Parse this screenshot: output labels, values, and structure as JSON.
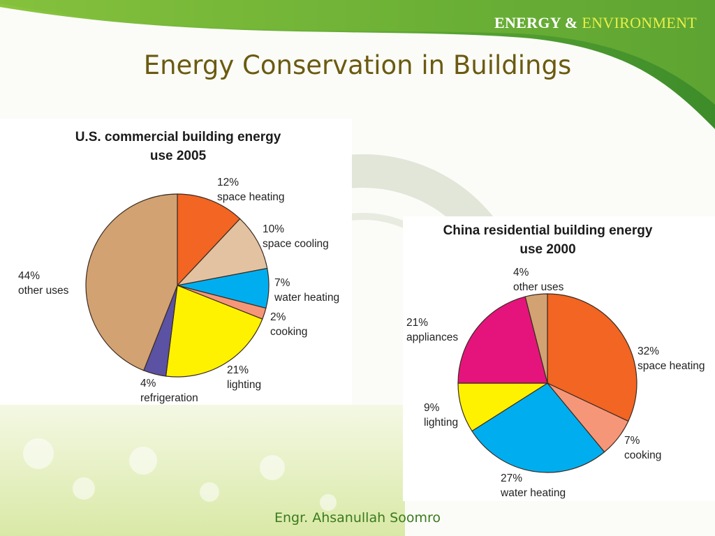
{
  "slide": {
    "brand_part1": "ENERGY &",
    "brand_part2": "ENVIRONMENT",
    "title": "Energy Conservation in Buildings",
    "footer": "Engr. Ahsanullah Soomro"
  },
  "colors": {
    "title": "#6b5a10",
    "brand_accent": "#e6f04a",
    "footer": "#3a7a1c"
  },
  "chart_data": [
    {
      "type": "pie",
      "title_line1": "U.S. commercial building energy",
      "title_line2": "use 2005",
      "slices": [
        {
          "pct": "12%",
          "name": "space heating",
          "value": 12,
          "color": "#f26522"
        },
        {
          "pct": "10%",
          "name": "space cooling",
          "value": 10,
          "color": "#e3c2a2"
        },
        {
          "pct": "7%",
          "name": "water heating",
          "value": 7,
          "color": "#00aeef"
        },
        {
          "pct": "2%",
          "name": "cooking",
          "value": 2,
          "color": "#f69679"
        },
        {
          "pct": "21%",
          "name": "lighting",
          "value": 21,
          "color": "#fff200"
        },
        {
          "pct": "4%",
          "name": "refrigeration",
          "value": 4,
          "color": "#5b52a3"
        },
        {
          "pct": "44%",
          "name": "other uses",
          "value": 44,
          "color": "#d2a273"
        }
      ]
    },
    {
      "type": "pie",
      "title_line1": "China residential building energy",
      "title_line2": "use 2000",
      "slices": [
        {
          "pct": "32%",
          "name": "space heating",
          "value": 32,
          "color": "#f26522"
        },
        {
          "pct": "7%",
          "name": "cooking",
          "value": 7,
          "color": "#f69679"
        },
        {
          "pct": "27%",
          "name": "water heating",
          "value": 27,
          "color": "#00aeef"
        },
        {
          "pct": "9%",
          "name": "lighting",
          "value": 9,
          "color": "#fff200"
        },
        {
          "pct": "21%",
          "name": "appliances",
          "value": 21,
          "color": "#e5147c"
        },
        {
          "pct": "4%",
          "name": "other uses",
          "value": 4,
          "color": "#d2a273"
        }
      ]
    }
  ]
}
